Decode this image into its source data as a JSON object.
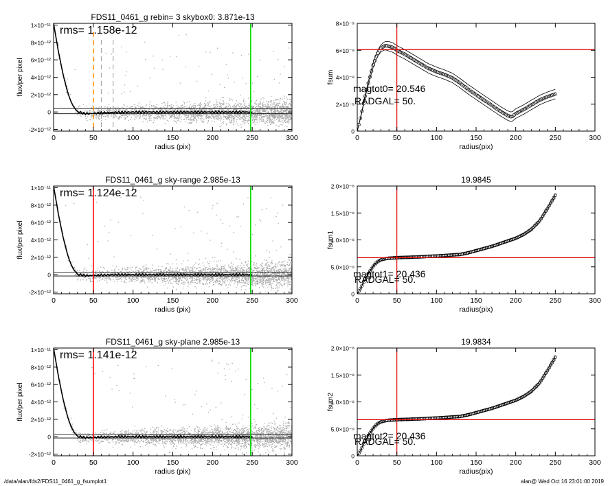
{
  "footer": {
    "path": "/data/alan/fds2/FDS11_0461_g_fsumplot1",
    "stamp": "alan@  Wed Oct 16 23:01:00 2019"
  },
  "chart_data": [
    {
      "type": "scatter",
      "title": "FDS11_0461_g rebin= 3    skybox0:  3.871e-13",
      "xlabel": "radius (pix)",
      "ylabel": "flux/per pixel",
      "xlim": [
        0,
        300
      ],
      "ylim": [
        -2.2e-12,
        1.02e-11
      ],
      "xticks": [
        "0",
        "50",
        "100",
        "150",
        "200",
        "250",
        "300"
      ],
      "yticks": [
        "1×10⁻¹¹",
        "8×10⁻¹²",
        "6×10⁻¹²",
        "4×10⁻¹²",
        "2×10⁻¹²",
        "0",
        "-2×10⁻¹²"
      ],
      "ytick_values": [
        1e-11,
        8e-12,
        6e-12,
        4e-12,
        2e-12,
        0,
        -2e-12
      ],
      "annotation": "rms= 1.158e-12",
      "sky_level": 3.871e-13,
      "vlines": [
        {
          "x": 50,
          "color": "#ff8c00",
          "style": "dashed"
        },
        {
          "x": 60,
          "color": "#999999",
          "style": "dashed"
        },
        {
          "x": 75,
          "color": "#999999",
          "style": "dashed"
        },
        {
          "x": 248,
          "color": "#00dd00",
          "style": "solid"
        }
      ],
      "profile_x": [
        0,
        3,
        6,
        9,
        12,
        15,
        18,
        21,
        24,
        27,
        30,
        35,
        40,
        45,
        50,
        60,
        80,
        100,
        150,
        200,
        250
      ],
      "profile_y": [
        1.02e-11,
        8.6e-12,
        7e-12,
        5.6e-12,
        4.3e-12,
        3.2e-12,
        2.2e-12,
        1.4e-12,
        8e-13,
        3.5e-13,
        8e-14,
        -1e-13,
        -2e-13,
        -2e-13,
        -1.5e-13,
        -1e-13,
        -5e-14,
        0,
        0,
        0,
        0
      ],
      "envelope": [
        -2e-13,
        4e-13
      ]
    },
    {
      "type": "line",
      "title": "",
      "xlabel": "radius(pix)",
      "ylabel": "fsum",
      "xlim": [
        0,
        300
      ],
      "ylim": [
        0,
        8e-09
      ],
      "xticks": [
        "0",
        "50",
        "100",
        "150",
        "200",
        "250",
        "300"
      ],
      "yticks": [
        "8×10⁻⁹",
        "6×10⁻⁹",
        "4×10⁻⁹",
        "2×10⁻⁹",
        "0"
      ],
      "ytick_values": [
        8e-09,
        6e-09,
        4e-09,
        2e-09,
        0
      ],
      "annotations": [
        "magtot0=  20.546",
        "RADGAL=     50."
      ],
      "hline": 6.05e-09,
      "vline": 50,
      "x": [
        0,
        5,
        10,
        15,
        20,
        25,
        30,
        35,
        40,
        45,
        50,
        60,
        70,
        80,
        90,
        100,
        110,
        120,
        130,
        140,
        150,
        160,
        170,
        180,
        190,
        195,
        200,
        210,
        220,
        230,
        240,
        250
      ],
      "y": [
        0,
        1.2e-09,
        2.6e-09,
        3.8e-09,
        4.9e-09,
        5.7e-09,
        6.15e-09,
        6.35e-09,
        6.3e-09,
        6.2e-09,
        6e-09,
        5.7e-09,
        5.35e-09,
        5e-09,
        4.65e-09,
        4.4e-09,
        4.2e-09,
        3.95e-09,
        3.55e-09,
        3.1e-09,
        2.7e-09,
        2.3e-09,
        1.9e-09,
        1.5e-09,
        1.15e-09,
        1.05e-09,
        1.3e-09,
        1.6e-09,
        1.95e-09,
        2.3e-09,
        2.55e-09,
        2.75e-09
      ],
      "band": 3.5e-10
    },
    {
      "type": "scatter",
      "title": "FDS11_0461_g sky-range  2.985e-13",
      "xlabel": "radius (pix)",
      "ylabel": "flux/per pixel",
      "xlim": [
        0,
        300
      ],
      "ylim": [
        -2.2e-12,
        1.02e-11
      ],
      "xticks": [
        "0",
        "50",
        "100",
        "150",
        "200",
        "250",
        "300"
      ],
      "yticks": [
        "1×10⁻¹¹",
        "8×10⁻¹²",
        "6×10⁻¹²",
        "4×10⁻¹²",
        "2×10⁻¹²",
        "0",
        "-2×10⁻¹²"
      ],
      "ytick_values": [
        1e-11,
        8e-12,
        6e-12,
        4e-12,
        2e-12,
        0,
        -2e-12
      ],
      "annotation": "rms= 1.124e-12",
      "sky_level": 2.985e-13,
      "vlines": [
        {
          "x": 50,
          "color": "#ff0000",
          "style": "solid"
        },
        {
          "x": 248,
          "color": "#00dd00",
          "style": "solid"
        }
      ],
      "profile_x": [
        0,
        3,
        6,
        9,
        12,
        15,
        18,
        21,
        24,
        27,
        30,
        35,
        40,
        45,
        50,
        60,
        80,
        100,
        150,
        200,
        250
      ],
      "profile_y": [
        1.02e-11,
        8.6e-12,
        7e-12,
        5.6e-12,
        4.3e-12,
        3.2e-12,
        2.2e-12,
        1.4e-12,
        8e-13,
        3.5e-13,
        8e-14,
        -5e-14,
        -1e-13,
        -1e-13,
        -1e-13,
        -5e-14,
        0,
        0,
        0,
        0,
        0
      ],
      "envelope": [
        -1.5e-13,
        3e-13
      ]
    },
    {
      "type": "line",
      "title": "19.9845",
      "xlabel": "radius(pix)",
      "ylabel": "fsum1",
      "xlim": [
        0,
        300
      ],
      "ylim": [
        0,
        2e-08
      ],
      "xticks": [
        "0",
        "50",
        "100",
        "150",
        "200",
        "250",
        "300"
      ],
      "yticks": [
        "2.0×10⁻⁸",
        "1.5×10⁻⁸",
        "1.0×10⁻⁸",
        "5.0×10⁻⁹",
        "0"
      ],
      "ytick_values": [
        2e-08,
        1.5e-08,
        1e-08,
        5e-09,
        0
      ],
      "annotations": [
        "magtot1=  20.436",
        "RADGAL=     50."
      ],
      "hline": 6.7e-09,
      "vline": 50,
      "x": [
        0,
        5,
        10,
        15,
        20,
        25,
        30,
        35,
        40,
        45,
        50,
        60,
        70,
        80,
        90,
        100,
        110,
        120,
        130,
        140,
        150,
        160,
        170,
        180,
        190,
        200,
        210,
        220,
        230,
        240,
        250
      ],
      "y": [
        0,
        1.2e-09,
        2.7e-09,
        4e-09,
        5.1e-09,
        5.9e-09,
        6.3e-09,
        6.5e-09,
        6.6e-09,
        6.65e-09,
        6.7e-09,
        6.75e-09,
        6.8e-09,
        6.85e-09,
        6.95e-09,
        7e-09,
        7.1e-09,
        7.2e-09,
        7.3e-09,
        7.6e-09,
        8e-09,
        8.4e-09,
        8.8e-09,
        9.3e-09,
        9.8e-09,
        1.03e-08,
        1.1e-08,
        1.2e-08,
        1.35e-08,
        1.58e-08,
        1.83e-08
      ],
      "band": 2e-10
    },
    {
      "type": "scatter",
      "title": "FDS11_0461_g sky-plane  2.985e-13",
      "xlabel": "radius (pix)",
      "ylabel": "flux/per pixel",
      "xlim": [
        0,
        300
      ],
      "ylim": [
        -2.2e-12,
        1.02e-11
      ],
      "xticks": [
        "0",
        "50",
        "100",
        "150",
        "200",
        "250",
        "300"
      ],
      "yticks": [
        "1×10⁻¹¹",
        "8×10⁻¹²",
        "6×10⁻¹²",
        "4×10⁻¹²",
        "2×10⁻¹²",
        "0",
        "-2×10⁻¹²"
      ],
      "ytick_values": [
        1e-11,
        8e-12,
        6e-12,
        4e-12,
        2e-12,
        0,
        -2e-12
      ],
      "annotation": "rms= 1.141e-12",
      "sky_level": 2.985e-13,
      "vlines": [
        {
          "x": 50,
          "color": "#ff0000",
          "style": "solid"
        },
        {
          "x": 248,
          "color": "#00dd00",
          "style": "solid"
        }
      ],
      "profile_x": [
        0,
        3,
        6,
        9,
        12,
        15,
        18,
        21,
        24,
        27,
        30,
        35,
        40,
        45,
        50,
        60,
        80,
        100,
        150,
        200,
        250
      ],
      "profile_y": [
        1.02e-11,
        8.6e-12,
        7e-12,
        5.6e-12,
        4.3e-12,
        3.2e-12,
        2.2e-12,
        1.4e-12,
        8e-13,
        3.5e-13,
        8e-14,
        -5e-14,
        -1e-13,
        -1e-13,
        -1e-13,
        -5e-14,
        0,
        0,
        0,
        0,
        0
      ],
      "envelope": [
        -1.5e-13,
        3e-13
      ]
    },
    {
      "type": "line",
      "title": "19.9834",
      "xlabel": "radius(pix)",
      "ylabel": "fsum2",
      "xlim": [
        0,
        300
      ],
      "ylim": [
        0,
        2e-08
      ],
      "xticks": [
        "0",
        "50",
        "100",
        "150",
        "200",
        "250",
        "300"
      ],
      "yticks": [
        "2.0×10⁻⁸",
        "1.5×10⁻⁸",
        "1.0×10⁻⁸",
        "5.0×10⁻⁹",
        "0"
      ],
      "ytick_values": [
        2e-08,
        1.5e-08,
        1e-08,
        5e-09,
        0
      ],
      "annotations": [
        "magtot2=  20.436",
        "RADGAL=     50."
      ],
      "hline": 6.7e-09,
      "vline": 50,
      "x": [
        0,
        5,
        10,
        15,
        20,
        25,
        30,
        35,
        40,
        45,
        50,
        60,
        70,
        80,
        90,
        100,
        110,
        120,
        130,
        140,
        150,
        160,
        170,
        180,
        190,
        200,
        210,
        220,
        230,
        240,
        250
      ],
      "y": [
        0,
        1.2e-09,
        2.7e-09,
        4e-09,
        5.1e-09,
        5.9e-09,
        6.3e-09,
        6.5e-09,
        6.6e-09,
        6.65e-09,
        6.7e-09,
        6.75e-09,
        6.8e-09,
        6.85e-09,
        6.95e-09,
        7e-09,
        7.1e-09,
        7.2e-09,
        7.3e-09,
        7.6e-09,
        8e-09,
        8.4e-09,
        8.8e-09,
        9.3e-09,
        9.8e-09,
        1.03e-08,
        1.1e-08,
        1.2e-08,
        1.35e-08,
        1.58e-08,
        1.83e-08
      ],
      "band": 2e-10
    }
  ]
}
